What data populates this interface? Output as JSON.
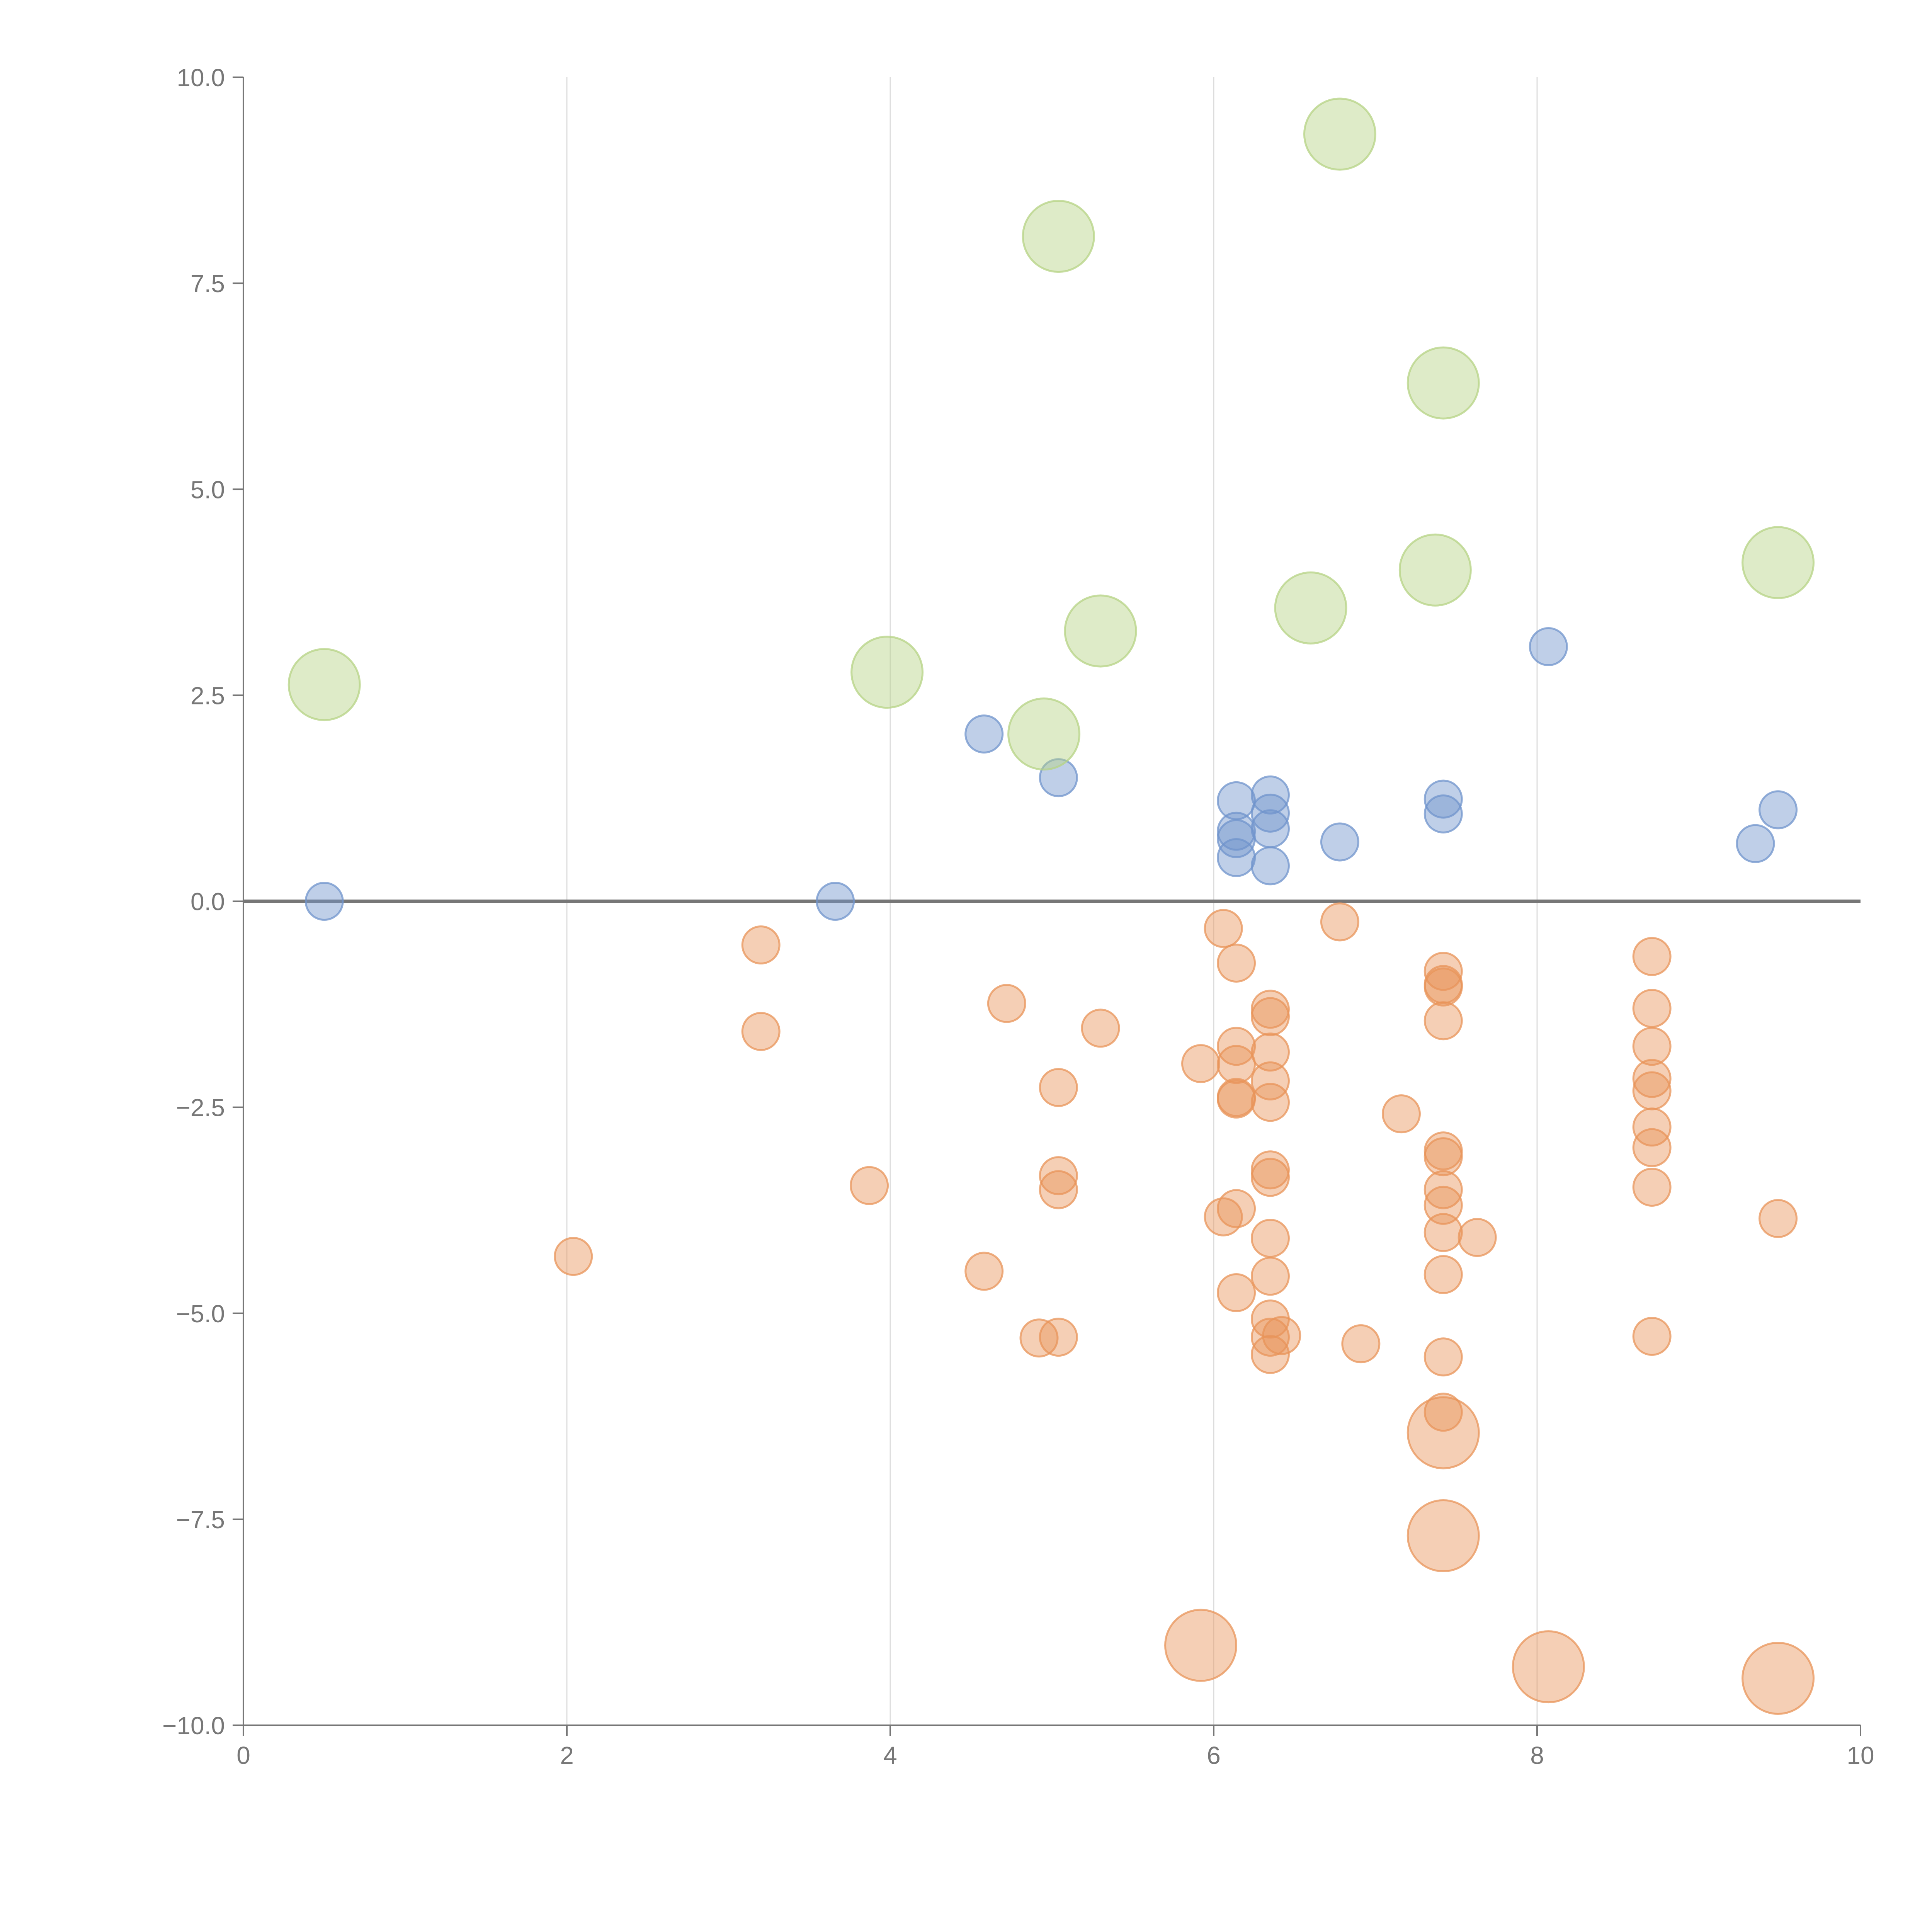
{
  "chart_data": {
    "type": "scatter",
    "title": "",
    "xlabel": "",
    "ylabel": "",
    "xlim": [
      0,
      10
    ],
    "ylim": [
      -10,
      10
    ],
    "grid": "vertical",
    "legend": "none",
    "x_ticks": [
      "0",
      "2",
      "4",
      "6",
      "8",
      "10"
    ],
    "y_ticks": [
      "10.0",
      "7.5",
      "5.0",
      "2.5",
      "0.0",
      "−2.5",
      "−5.0",
      "−7.5",
      "−10.0"
    ],
    "series": [
      {
        "name": "positive-small",
        "color": "#7094cc",
        "size": "small",
        "points": [
          [
            0.5,
            0.0
          ],
          [
            3.66,
            0.0
          ],
          [
            4.58,
            2.03
          ],
          [
            5.04,
            1.5
          ],
          [
            8.07,
            3.09
          ],
          [
            6.14,
            1.22
          ],
          [
            6.14,
            0.85
          ],
          [
            6.14,
            0.76
          ],
          [
            6.14,
            0.53
          ],
          [
            6.35,
            1.29
          ],
          [
            6.35,
            1.07
          ],
          [
            6.35,
            0.88
          ],
          [
            6.35,
            0.43
          ],
          [
            6.78,
            0.72
          ],
          [
            7.42,
            1.24
          ],
          [
            7.42,
            1.06
          ],
          [
            9.35,
            0.7
          ],
          [
            9.49,
            1.11
          ]
        ]
      },
      {
        "name": "negative-small",
        "color": "#e8945a",
        "size": "small",
        "points": [
          [
            2.04,
            -4.31
          ],
          [
            3.2,
            -0.53
          ],
          [
            3.2,
            -1.58
          ],
          [
            3.87,
            -3.45
          ],
          [
            4.58,
            -4.49
          ],
          [
            4.72,
            -1.24
          ],
          [
            4.92,
            -5.3
          ],
          [
            5.04,
            -2.26
          ],
          [
            5.04,
            -3.33
          ],
          [
            5.04,
            -3.5
          ],
          [
            5.04,
            -5.29
          ],
          [
            5.3,
            -1.54
          ],
          [
            5.92,
            -1.97
          ],
          [
            6.06,
            -0.33
          ],
          [
            6.06,
            -3.83
          ],
          [
            6.14,
            -0.75
          ],
          [
            6.14,
            -1.76
          ],
          [
            6.14,
            -1.98
          ],
          [
            6.14,
            -2.38
          ],
          [
            6.14,
            -2.4
          ],
          [
            6.14,
            -3.73
          ],
          [
            6.14,
            -4.75
          ],
          [
            6.35,
            -1.31
          ],
          [
            6.35,
            -1.4
          ],
          [
            6.35,
            -1.83
          ],
          [
            6.35,
            -2.18
          ],
          [
            6.35,
            -2.44
          ],
          [
            6.35,
            -3.26
          ],
          [
            6.35,
            -3.35
          ],
          [
            6.35,
            -4.09
          ],
          [
            6.35,
            -4.55
          ],
          [
            6.35,
            -5.07
          ],
          [
            6.35,
            -5.29
          ],
          [
            6.35,
            -5.5
          ],
          [
            6.42,
            -5.27
          ],
          [
            6.78,
            -0.25
          ],
          [
            6.91,
            -5.37
          ],
          [
            7.16,
            -2.58
          ],
          [
            7.42,
            -0.85
          ],
          [
            7.42,
            -1.01
          ],
          [
            7.42,
            -1.04
          ],
          [
            7.42,
            -1.45
          ],
          [
            7.42,
            -3.03
          ],
          [
            7.42,
            -3.1
          ],
          [
            7.42,
            -3.5
          ],
          [
            7.42,
            -3.69
          ],
          [
            7.42,
            -4.02
          ],
          [
            7.42,
            -4.53
          ],
          [
            7.42,
            -5.53
          ],
          [
            7.42,
            -6.2
          ],
          [
            7.63,
            -4.08
          ],
          [
            8.71,
            -0.67
          ],
          [
            8.71,
            -1.3
          ],
          [
            8.71,
            -1.76
          ],
          [
            8.71,
            -2.15
          ],
          [
            8.71,
            -2.3
          ],
          [
            8.71,
            -2.74
          ],
          [
            8.71,
            -2.99
          ],
          [
            8.71,
            -3.47
          ],
          [
            8.71,
            -5.28
          ],
          [
            9.49,
            -3.85
          ]
        ]
      },
      {
        "name": "positive-large",
        "color": "#b5d384",
        "size": "large",
        "points": [
          [
            0.5,
            2.63
          ],
          [
            3.98,
            2.78
          ],
          [
            4.95,
            2.03
          ],
          [
            5.04,
            8.07
          ],
          [
            5.3,
            3.28
          ],
          [
            6.6,
            3.56
          ],
          [
            6.78,
            9.31
          ],
          [
            7.37,
            4.02
          ],
          [
            7.42,
            6.29
          ],
          [
            9.49,
            4.11
          ]
        ]
      },
      {
        "name": "negative-large",
        "color": "#e8945a",
        "size": "large",
        "points": [
          [
            5.92,
            -9.03
          ],
          [
            7.42,
            -6.45
          ],
          [
            7.42,
            -7.7
          ],
          [
            8.07,
            -9.29
          ],
          [
            9.49,
            -9.43
          ]
        ]
      }
    ]
  }
}
